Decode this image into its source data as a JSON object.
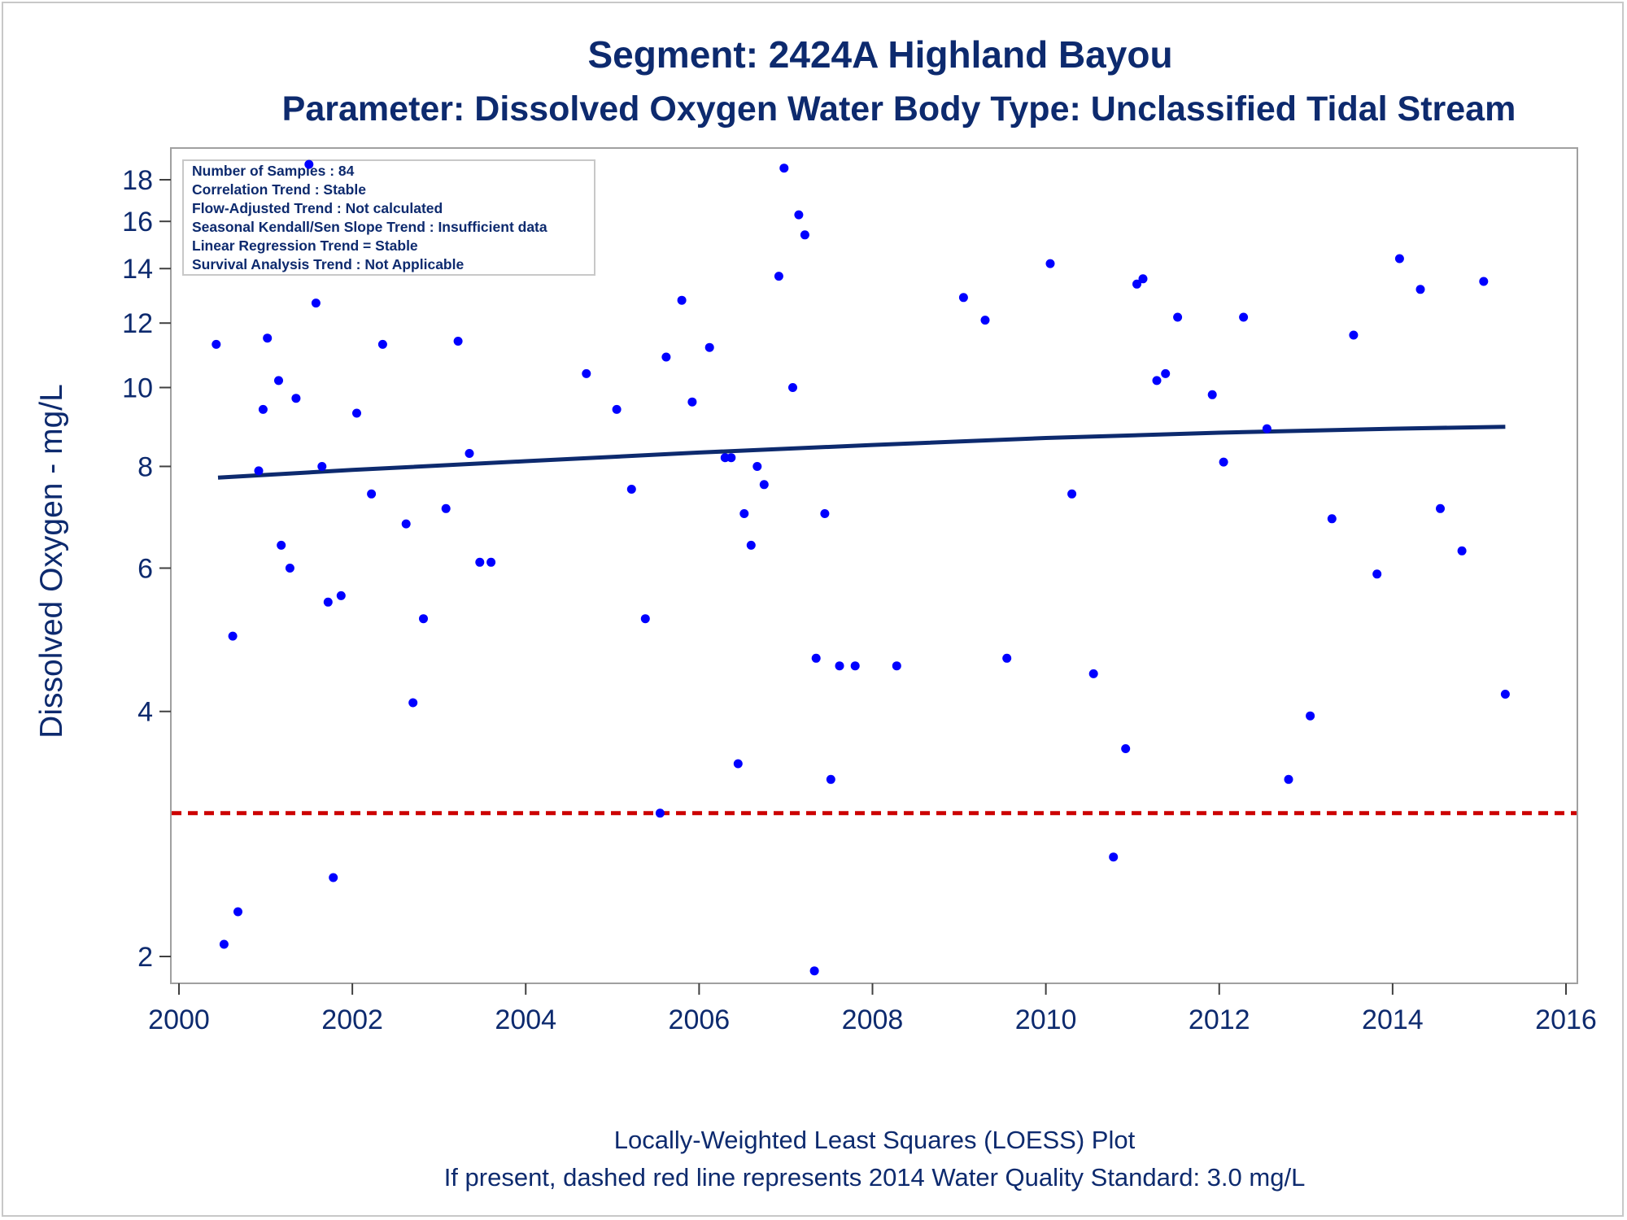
{
  "colors": {
    "text": "#0d2a6e",
    "points": "#0000ff",
    "trend_line": "#0d2a6e",
    "standard_line": "#cc0000",
    "frame": "#a0a0a0"
  },
  "header": {
    "title": "Segment: 2424A  Highland Bayou",
    "subtitle": "Parameter: Dissolved Oxygen   Water Body Type: Unclassified Tidal Stream"
  },
  "stats_box": {
    "lines": [
      "Number of Samples : 84",
      "Correlation Trend : Stable",
      "Flow-Adjusted Trend : Not calculated",
      "Seasonal Kendall/Sen Slope Trend : Insufficient data",
      "Linear Regression Trend = Stable",
      "Survival Analysis Trend : Not Applicable"
    ]
  },
  "footer": {
    "line1": "Locally-Weighted Least Squares (LOESS) Plot",
    "line2": "If present, dashed red line represents 2014 Water Quality Standard: 3.0 mg/L"
  },
  "chart_data": {
    "type": "scatter",
    "title": "Segment: 2424A  Highland Bayou",
    "subtitle": "Parameter: Dissolved Oxygen   Water Body Type: Unclassified Tidal Stream",
    "xlabel": "",
    "ylabel": "Dissolved Oxygen - mg/L",
    "y_scale": "log",
    "xlim": [
      2000,
      2016
    ],
    "ylim": [
      1.9,
      19
    ],
    "x_ticks": [
      "2000",
      "2002",
      "2004",
      "2006",
      "2008",
      "2010",
      "2012",
      "2014",
      "2016"
    ],
    "y_ticks": [
      "2",
      "4",
      "6",
      "8",
      "10",
      "12",
      "14",
      "16",
      "18"
    ],
    "grid": false,
    "standard_line": {
      "value": 3.0,
      "style": "dashed",
      "color": "#cc0000"
    },
    "trend_line": {
      "x": [
        2000.45,
        2002,
        2004,
        2006,
        2008,
        2010,
        2012,
        2014,
        2015.3
      ],
      "y": [
        7.75,
        7.92,
        8.12,
        8.32,
        8.5,
        8.67,
        8.8,
        8.9,
        8.95
      ]
    },
    "points": [
      {
        "x": 2000.43,
        "y": 11.3
      },
      {
        "x": 2000.52,
        "y": 2.07
      },
      {
        "x": 2000.62,
        "y": 4.95
      },
      {
        "x": 2000.68,
        "y": 2.27
      },
      {
        "x": 2000.92,
        "y": 7.9
      },
      {
        "x": 2000.97,
        "y": 9.4
      },
      {
        "x": 2001.02,
        "y": 11.5
      },
      {
        "x": 2001.15,
        "y": 10.2
      },
      {
        "x": 2001.18,
        "y": 6.4
      },
      {
        "x": 2001.28,
        "y": 6.0
      },
      {
        "x": 2001.35,
        "y": 9.7
      },
      {
        "x": 2001.5,
        "y": 18.8
      },
      {
        "x": 2001.58,
        "y": 12.7
      },
      {
        "x": 2001.65,
        "y": 8.0
      },
      {
        "x": 2001.72,
        "y": 5.45
      },
      {
        "x": 2001.78,
        "y": 2.5
      },
      {
        "x": 2001.87,
        "y": 5.55
      },
      {
        "x": 2002.05,
        "y": 9.3
      },
      {
        "x": 2002.22,
        "y": 7.4
      },
      {
        "x": 2002.35,
        "y": 11.3
      },
      {
        "x": 2002.62,
        "y": 6.8
      },
      {
        "x": 2002.7,
        "y": 4.1
      },
      {
        "x": 2002.82,
        "y": 5.2
      },
      {
        "x": 2003.08,
        "y": 7.1
      },
      {
        "x": 2003.22,
        "y": 11.4
      },
      {
        "x": 2003.35,
        "y": 8.3
      },
      {
        "x": 2003.47,
        "y": 6.1
      },
      {
        "x": 2003.6,
        "y": 6.1
      },
      {
        "x": 2004.7,
        "y": 10.4
      },
      {
        "x": 2005.05,
        "y": 9.4
      },
      {
        "x": 2005.22,
        "y": 7.5
      },
      {
        "x": 2005.38,
        "y": 5.2
      },
      {
        "x": 2005.55,
        "y": 3.0
      },
      {
        "x": 2005.62,
        "y": 10.9
      },
      {
        "x": 2005.8,
        "y": 12.8
      },
      {
        "x": 2005.92,
        "y": 9.6
      },
      {
        "x": 2006.12,
        "y": 11.2
      },
      {
        "x": 2006.3,
        "y": 8.2
      },
      {
        "x": 2006.37,
        "y": 8.2
      },
      {
        "x": 2006.45,
        "y": 3.45
      },
      {
        "x": 2006.52,
        "y": 7.0
      },
      {
        "x": 2006.6,
        "y": 6.4
      },
      {
        "x": 2006.67,
        "y": 8.0
      },
      {
        "x": 2006.75,
        "y": 7.6
      },
      {
        "x": 2006.92,
        "y": 13.7
      },
      {
        "x": 2006.98,
        "y": 18.6
      },
      {
        "x": 2007.08,
        "y": 10.0
      },
      {
        "x": 2007.15,
        "y": 16.3
      },
      {
        "x": 2007.22,
        "y": 15.4
      },
      {
        "x": 2007.33,
        "y": 1.92
      },
      {
        "x": 2007.35,
        "y": 4.65
      },
      {
        "x": 2007.45,
        "y": 7.0
      },
      {
        "x": 2007.52,
        "y": 3.3
      },
      {
        "x": 2007.62,
        "y": 4.55
      },
      {
        "x": 2007.8,
        "y": 4.55
      },
      {
        "x": 2008.28,
        "y": 4.55
      },
      {
        "x": 2009.05,
        "y": 12.9
      },
      {
        "x": 2009.3,
        "y": 12.1
      },
      {
        "x": 2009.55,
        "y": 4.65
      },
      {
        "x": 2010.05,
        "y": 14.2
      },
      {
        "x": 2010.3,
        "y": 7.4
      },
      {
        "x": 2010.55,
        "y": 4.45
      },
      {
        "x": 2010.78,
        "y": 2.65
      },
      {
        "x": 2010.92,
        "y": 3.6
      },
      {
        "x": 2011.05,
        "y": 13.4
      },
      {
        "x": 2011.12,
        "y": 13.6
      },
      {
        "x": 2011.28,
        "y": 10.2
      },
      {
        "x": 2011.38,
        "y": 10.4
      },
      {
        "x": 2011.52,
        "y": 12.2
      },
      {
        "x": 2011.92,
        "y": 9.8
      },
      {
        "x": 2012.05,
        "y": 8.1
      },
      {
        "x": 2012.28,
        "y": 12.2
      },
      {
        "x": 2012.55,
        "y": 8.9
      },
      {
        "x": 2012.8,
        "y": 3.3
      },
      {
        "x": 2013.05,
        "y": 3.95
      },
      {
        "x": 2013.3,
        "y": 6.9
      },
      {
        "x": 2013.55,
        "y": 11.6
      },
      {
        "x": 2013.82,
        "y": 5.9
      },
      {
        "x": 2014.08,
        "y": 14.4
      },
      {
        "x": 2014.32,
        "y": 13.2
      },
      {
        "x": 2014.55,
        "y": 7.1
      },
      {
        "x": 2014.8,
        "y": 6.3
      },
      {
        "x": 2015.05,
        "y": 13.5
      },
      {
        "x": 2015.3,
        "y": 4.2
      }
    ]
  }
}
